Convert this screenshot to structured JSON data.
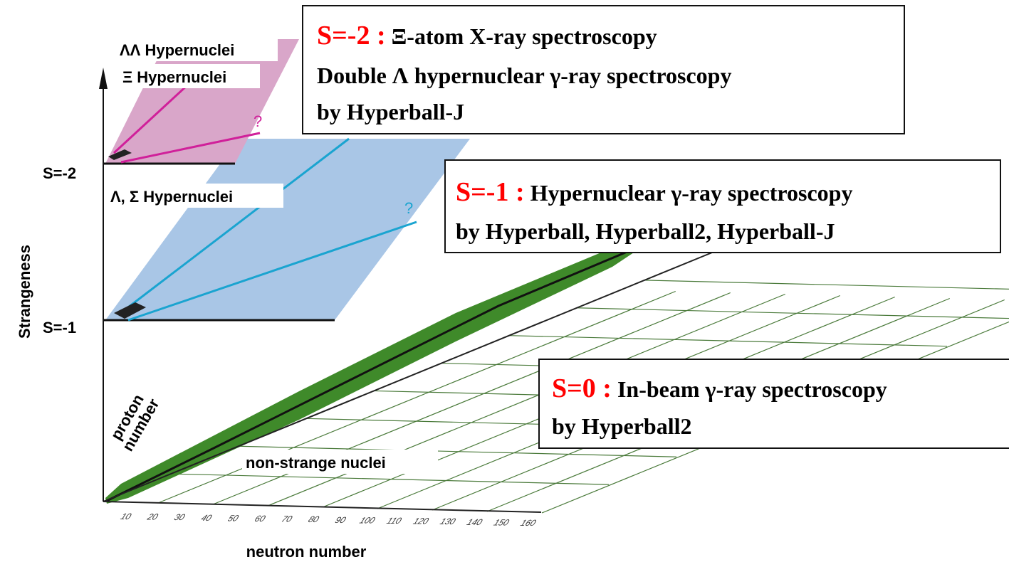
{
  "axes": {
    "vertical_label": "Strangeness",
    "levels": [
      "S=-2",
      "S=-1"
    ],
    "proton_label": [
      "proton",
      "number"
    ],
    "neutron_label": "neutron number",
    "neutron_ticks": [
      "10",
      "20",
      "30",
      "40",
      "50",
      "60",
      "70",
      "80",
      "90",
      "100",
      "110",
      "120",
      "130",
      "140",
      "150",
      "160"
    ]
  },
  "planes": [
    {
      "labels": [
        "ΛΛ  Hypernuclei",
        "Ξ  Hypernuclei"
      ],
      "mark": "?"
    },
    {
      "labels": [
        "Λ, Σ  Hypernuclei"
      ],
      "mark": "?"
    },
    {
      "labels": [
        "non-strange  nuclei"
      ]
    }
  ],
  "boxes": [
    {
      "title": "S=-2 :",
      "lines": [
        "Ξ-atom X-ray spectroscopy",
        "Double Λ hypernuclear γ-ray spectroscopy",
        "by Hyperball-J"
      ]
    },
    {
      "title": "S=-1 :",
      "lines": [
        "Hypernuclear γ-ray spectroscopy",
        "by Hyperball, Hyperball2, Hyperball-J"
      ]
    },
    {
      "title": "S=0 :",
      "lines": [
        "In-beam γ-ray spectroscopy",
        "by Hyperball2"
      ]
    }
  ]
}
